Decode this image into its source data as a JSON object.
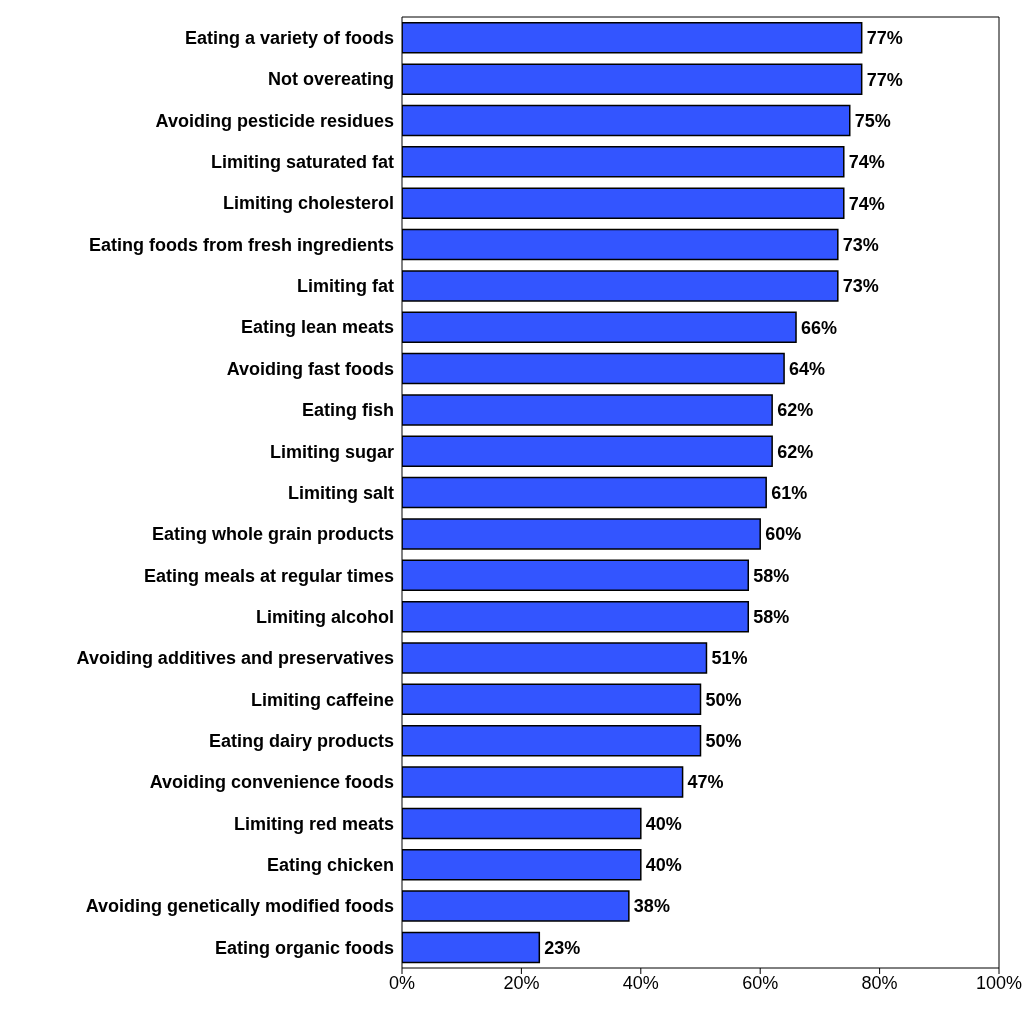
{
  "chart_data": {
    "type": "bar",
    "orientation": "horizontal",
    "categories": [
      "Eating a variety of foods",
      "Not overeating",
      "Avoiding pesticide residues",
      "Limiting saturated fat",
      "Limiting cholesterol",
      "Eating foods from fresh ingredients",
      "Limiting fat",
      "Eating lean meats",
      "Avoiding fast foods",
      "Eating fish",
      "Limiting sugar",
      "Limiting salt",
      "Eating whole grain products",
      "Eating meals at regular times",
      "Limiting alcohol",
      "Avoiding additives and preservatives",
      "Limiting caffeine",
      "Eating dairy products",
      "Avoiding convenience foods",
      "Limiting red meats",
      "Eating chicken",
      "Avoiding genetically modified foods",
      "Eating organic foods"
    ],
    "values": [
      77,
      77,
      75,
      74,
      74,
      73,
      73,
      66,
      64,
      62,
      62,
      61,
      60,
      58,
      58,
      51,
      50,
      50,
      47,
      40,
      40,
      38,
      23
    ],
    "value_labels": [
      "77%",
      "77%",
      "75%",
      "74%",
      "74%",
      "73%",
      "73%",
      "66%",
      "64%",
      "62%",
      "62%",
      "61%",
      "60%",
      "58%",
      "58%",
      "51%",
      "50%",
      "50%",
      "47%",
      "40%",
      "40%",
      "38%",
      "23%"
    ],
    "color": "#3355ff",
    "xlim": [
      0,
      100
    ],
    "xticks": [
      {
        "value": 0,
        "label": "0%"
      },
      {
        "value": 20,
        "label": "20%"
      },
      {
        "value": 40,
        "label": "40%"
      },
      {
        "value": 60,
        "label": "60%"
      },
      {
        "value": 80,
        "label": "80%"
      },
      {
        "value": 100,
        "label": "100%"
      }
    ],
    "grid": false,
    "legend": false
  }
}
